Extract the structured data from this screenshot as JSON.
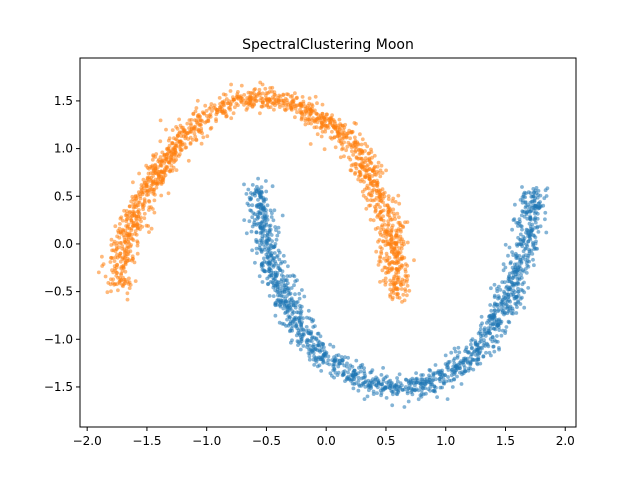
{
  "chart_data": {
    "type": "scatter",
    "title": "SpectralClustering Moon",
    "xlabel": "",
    "ylabel": "",
    "xlim": [
      -2.06,
      2.09
    ],
    "ylim": [
      -1.92,
      1.95
    ],
    "xticks": [
      -2.0,
      -1.5,
      -1.0,
      -0.5,
      0.0,
      0.5,
      1.0,
      1.5,
      2.0
    ],
    "xtick_labels": [
      "−2.0",
      "−1.5",
      "−1.0",
      "−0.5",
      "0.0",
      "0.5",
      "1.0",
      "1.5",
      "2.0"
    ],
    "yticks": [
      -1.5,
      -1.0,
      -0.5,
      0.0,
      0.5,
      1.0,
      1.5
    ],
    "ytick_labels": [
      "−1.5",
      "−1.0",
      "−0.5",
      "0.0",
      "0.5",
      "1.0",
      "1.5"
    ],
    "grid": false,
    "legend": "none",
    "marker_alpha": 0.55,
    "series": [
      {
        "color": "#ff7f0e",
        "cluster": "upper moon",
        "curve": [
          [
            -1.75,
            -0.45
          ],
          [
            -1.7,
            -0.05
          ],
          [
            -1.55,
            0.45
          ],
          [
            -1.35,
            0.85
          ],
          [
            -1.1,
            1.25
          ],
          [
            -0.85,
            1.45
          ],
          [
            -0.55,
            1.55
          ],
          [
            -0.25,
            1.47
          ],
          [
            0.0,
            1.27
          ],
          [
            0.2,
            1.05
          ],
          [
            0.35,
            0.75
          ],
          [
            0.48,
            0.4
          ],
          [
            0.55,
            0.05
          ],
          [
            0.6,
            -0.3
          ],
          [
            0.58,
            -0.55
          ]
        ],
        "point_count": 1500,
        "spread": 0.06
      },
      {
        "color": "#1f77b4",
        "cluster": "lower moon",
        "curve": [
          [
            -0.58,
            0.6
          ],
          [
            -0.55,
            0.3
          ],
          [
            -0.5,
            -0.05
          ],
          [
            -0.4,
            -0.45
          ],
          [
            -0.25,
            -0.8
          ],
          [
            -0.05,
            -1.15
          ],
          [
            0.2,
            -1.38
          ],
          [
            0.5,
            -1.5
          ],
          [
            0.8,
            -1.48
          ],
          [
            1.05,
            -1.35
          ],
          [
            1.3,
            -1.08
          ],
          [
            1.5,
            -0.65
          ],
          [
            1.62,
            -0.2
          ],
          [
            1.7,
            0.25
          ],
          [
            1.75,
            0.55
          ]
        ],
        "point_count": 1500,
        "spread": 0.06
      }
    ]
  }
}
